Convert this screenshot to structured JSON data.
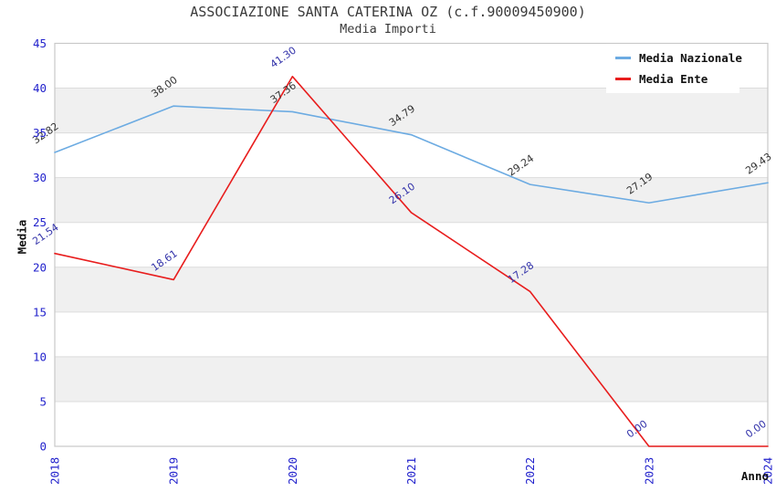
{
  "colors": {
    "background": "#ffffff",
    "title_text": "#3a3a3a",
    "tick_label": "#2222cc",
    "axis_text": "#111111",
    "band_fill": "#f0f0f0",
    "gridline": "#dcdcdc",
    "plot_border": "#c8c8c8",
    "legend_bg": "#ffffff"
  },
  "chart_data": {
    "type": "line",
    "title": "ASSOCIAZIONE SANTA CATERINA OZ (c.f.90009450900)",
    "subtitle": "Media Importi",
    "xlabel": "Anno",
    "ylabel": "Media",
    "x": [
      "2018",
      "2019",
      "2020",
      "2021",
      "2022",
      "2023",
      "2024"
    ],
    "ylim": [
      0,
      45
    ],
    "yticks": [
      0,
      5,
      10,
      15,
      20,
      25,
      30,
      35,
      40,
      45
    ],
    "grid": "horizontal-bands-alternating",
    "legend_position": "top-right",
    "series": [
      {
        "name": "Media Nazionale",
        "color": "#6cabe2",
        "label_color": "#333333",
        "values": [
          32.82,
          38.0,
          37.36,
          34.79,
          29.24,
          27.19,
          29.43
        ]
      },
      {
        "name": "Media Ente",
        "color": "#e81d1d",
        "label_color": "#3333aa",
        "values": [
          21.54,
          18.61,
          41.3,
          26.1,
          17.28,
          0.0,
          0.0
        ]
      }
    ]
  }
}
